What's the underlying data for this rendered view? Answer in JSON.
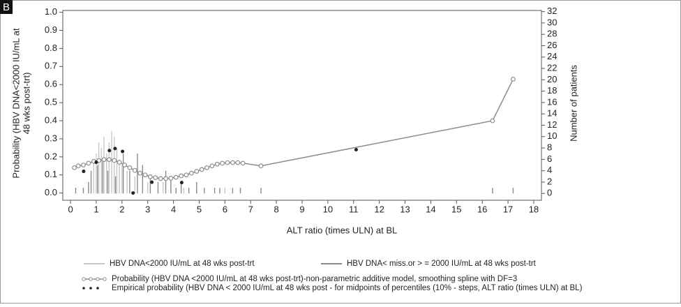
{
  "chart_data": {
    "type": "combo",
    "panel_label": "B",
    "xlabel": "ALT ratio (times ULN) at BL",
    "ylabel": [
      "Probability (HBV DNA<2000 IU/mL at",
      "48 wks post-trt)"
    ],
    "y2label": "Number of patients",
    "xlim": [
      -0.3,
      18.3
    ],
    "xticks": [
      0,
      1,
      2,
      3,
      4,
      5,
      6,
      7,
      8,
      9,
      10,
      11,
      12,
      13,
      14,
      15,
      16,
      17,
      18
    ],
    "ylim": [
      -0.04,
      1.01
    ],
    "yticks": [
      {
        "value": 0,
        "label": "0.0"
      },
      {
        "value": 0.1,
        "label": "0.1"
      },
      {
        "value": 0.2,
        "label": "0.2"
      },
      {
        "value": 0.3,
        "label": "0.3"
      },
      {
        "value": 0.4,
        "label": "0.4"
      },
      {
        "value": 0.5,
        "label": "0.5"
      },
      {
        "value": 0.6,
        "label": "0.6"
      },
      {
        "value": 0.7,
        "label": "0.7"
      },
      {
        "value": 0.8,
        "label": "0.8"
      },
      {
        "value": 0.9,
        "label": "0.9"
      },
      {
        "value": 1,
        "label": "1.0"
      }
    ],
    "y2lim": [
      -1.2,
      32.2
    ],
    "y2ticks": [
      0,
      2,
      4,
      6,
      8,
      10,
      12,
      14,
      16,
      18,
      20,
      22,
      24,
      26,
      28,
      30,
      32
    ],
    "series": [
      {
        "name": "HBV DNA<2000 IU/mL at 48 wks post-trt",
        "type": "bar",
        "axis": "y2",
        "color": "#c8c8c8",
        "x": [
          0.9,
          1.0,
          1.1,
          1.2,
          1.3,
          1.4,
          1.5,
          1.6,
          1.7,
          1.8,
          1.9,
          2.0,
          2.2,
          2.5,
          3.0,
          3.6,
          4.4,
          6.0
        ],
        "values": [
          6,
          7,
          9,
          8,
          10,
          7,
          9,
          11,
          10,
          8,
          6,
          5,
          4,
          3,
          2,
          2,
          1,
          1
        ]
      },
      {
        "name": "HBV DNA< miss.or > = 2000 IU/mL at 48 wks post-trt",
        "type": "bar",
        "axis": "y2",
        "color": "#8a8a8a",
        "x": [
          0.2,
          0.5,
          0.7,
          0.8,
          1.05,
          1.25,
          1.45,
          1.75,
          2.05,
          2.3,
          2.6,
          2.8,
          3.1,
          3.4,
          3.7,
          3.9,
          4.1,
          4.3,
          4.6,
          4.9,
          5.2,
          5.6,
          5.8,
          6.3,
          6.6,
          7.4,
          16.4,
          17.2
        ],
        "values": [
          1,
          1,
          2,
          4,
          5,
          6,
          4,
          3,
          7,
          4,
          7,
          5,
          3,
          2,
          4,
          3,
          1,
          2,
          1,
          2,
          1,
          1,
          1,
          1,
          1,
          1,
          1,
          1
        ]
      },
      {
        "name": "Probability (HBV DNA <2000 IU/mL at 48 wks post-trt)-non-parametric  additive model, smoothing spline with DF=3",
        "type": "line",
        "color": "#8c8c8c",
        "x": [
          0.15,
          0.3,
          0.5,
          0.7,
          0.9,
          1.1,
          1.3,
          1.5,
          1.7,
          1.9,
          2.1,
          2.3,
          2.5,
          2.7,
          2.9,
          3.1,
          3.3,
          3.5,
          3.7,
          3.9,
          4.1,
          4.3,
          4.5,
          4.7,
          4.9,
          5.1,
          5.3,
          5.5,
          5.7,
          5.9,
          6.1,
          6.3,
          6.5,
          6.7,
          7.4,
          16.4,
          17.2
        ],
        "values": [
          0.14,
          0.15,
          0.155,
          0.165,
          0.175,
          0.18,
          0.185,
          0.185,
          0.18,
          0.17,
          0.155,
          0.14,
          0.125,
          0.11,
          0.1,
          0.09,
          0.085,
          0.08,
          0.08,
          0.082,
          0.087,
          0.095,
          0.1,
          0.11,
          0.12,
          0.13,
          0.14,
          0.15,
          0.16,
          0.165,
          0.168,
          0.168,
          0.168,
          0.165,
          0.15,
          0.4,
          0.63
        ]
      },
      {
        "name": "Empirical probability (HBV DNA < 2000 IU/mL at 48 wks post - for midpoints of percentiles (10% - steps, ALT ratio (times ULN) at BL)",
        "type": "scatter",
        "color": "#222222",
        "x": [
          0.51,
          1.0,
          1.51,
          1.73,
          2.02,
          2.43,
          3.16,
          4.32,
          11.1
        ],
        "values": [
          0.12,
          0.17,
          0.235,
          0.246,
          0.23,
          0.0,
          0.06,
          0.058,
          0.24
        ]
      }
    ]
  }
}
